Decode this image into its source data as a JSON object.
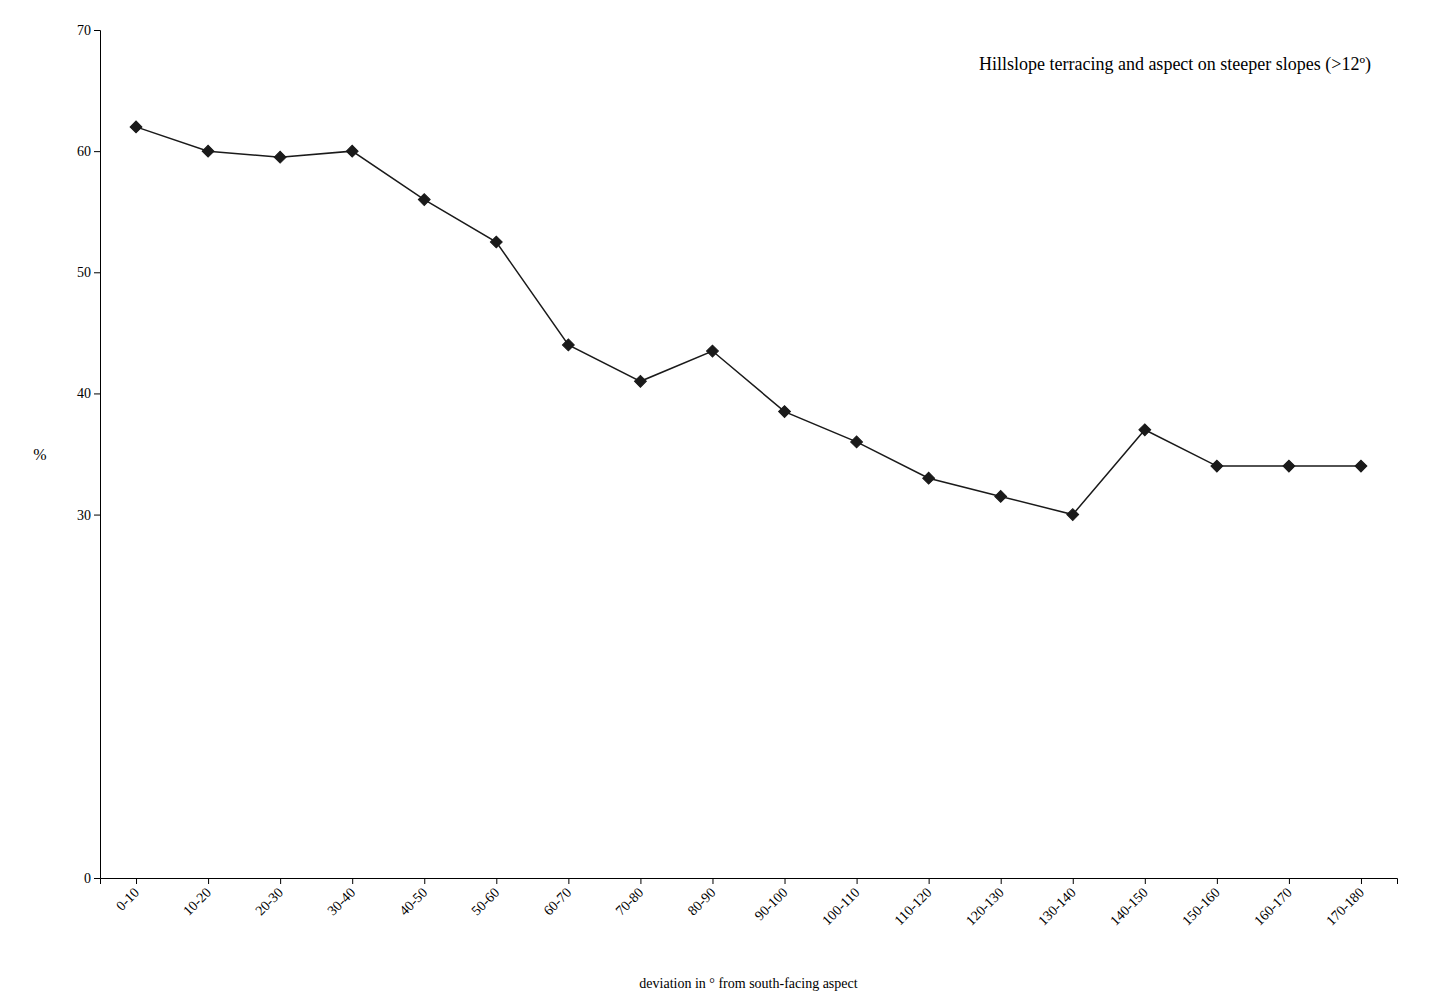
{
  "chart_data": {
    "type": "line",
    "title": "Hillslope terracing and aspect on steeper slopes (>12º)",
    "xlabel": "deviation in ° from south-facing aspect",
    "ylabel": "%",
    "categories": [
      "0-10",
      "10-20",
      "20-30",
      "30-40",
      "40-50",
      "50-60",
      "60-70",
      "70-80",
      "80-90",
      "90-100",
      "100-110",
      "110-120",
      "120-130",
      "130-140",
      "140-150",
      "150-160",
      "160-170",
      "170-180"
    ],
    "values": [
      62.0,
      60.0,
      59.5,
      60.0,
      56.0,
      52.5,
      44.0,
      41.0,
      43.5,
      38.5,
      36.0,
      33.0,
      31.5,
      30.0,
      37.0,
      34.0,
      34.0,
      34.0
    ],
    "ylim": [
      0,
      70
    ],
    "yticks": [
      0,
      30,
      40,
      50,
      60,
      70
    ],
    "color": "#1a1a1a",
    "marker": "diamond",
    "grid": false
  }
}
